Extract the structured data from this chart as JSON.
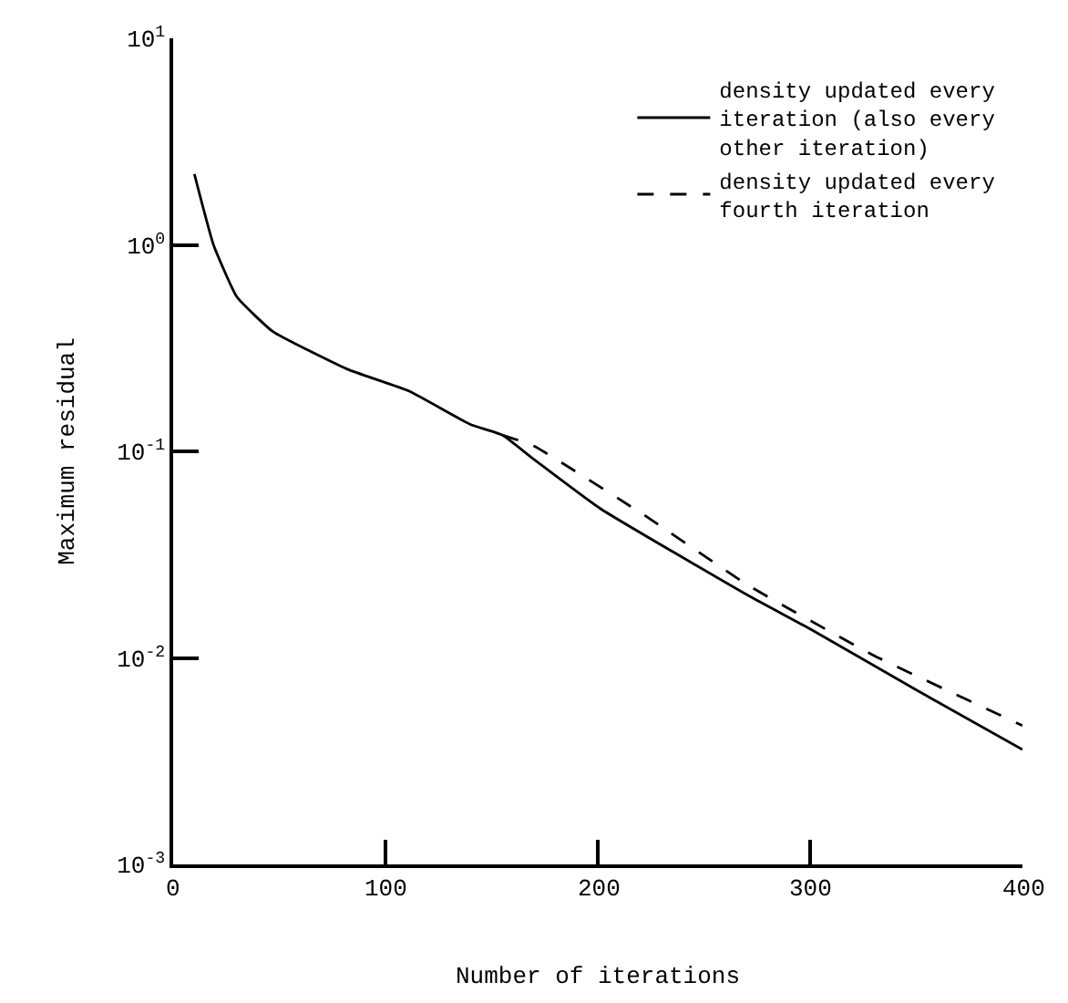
{
  "chart_data": {
    "type": "line",
    "xlabel": "Number of iterations",
    "ylabel": "Maximum residual",
    "log": "y",
    "legend": "top right",
    "marker": "none",
    "xlim": [
      0,
      400
    ],
    "xticks": [
      0,
      100,
      200,
      300,
      400
    ],
    "ylim": [
      0.001,
      10
    ],
    "yticks": [
      {
        "value": 10,
        "label": "10$^{1}$"
      },
      {
        "value": 1,
        "label": "10$^{0}$"
      },
      {
        "value": 0.1,
        "label": "10$^{-1}$"
      },
      {
        "value": 0.01,
        "label": "10$^{-2}$"
      },
      {
        "value": 0.001,
        "label": "10$^{-3}$"
      }
    ],
    "series": [
      {
        "name": "density updated every\niteration (also every\nother iteration)",
        "color": "#000000",
        "line_style": "solid",
        "x": [
          10,
          19,
          30,
          47,
          82,
          111,
          140,
          155,
          169,
          201,
          271,
          300,
          351,
          400
        ],
        "values": [
          2.2,
          1.0,
          0.56,
          0.38,
          0.25,
          0.196,
          0.135,
          0.12,
          0.093,
          0.053,
          0.02,
          0.0138,
          0.0069,
          0.0036
        ]
      },
      {
        "name": "density updated every\nfourth iteration",
        "color": "#000000",
        "line_style": "dashed",
        "x": [
          155,
          170,
          222,
          271,
          329,
          400
        ],
        "values": [
          0.12,
          0.106,
          0.049,
          0.0224,
          0.0104,
          0.0047
        ]
      }
    ]
  }
}
